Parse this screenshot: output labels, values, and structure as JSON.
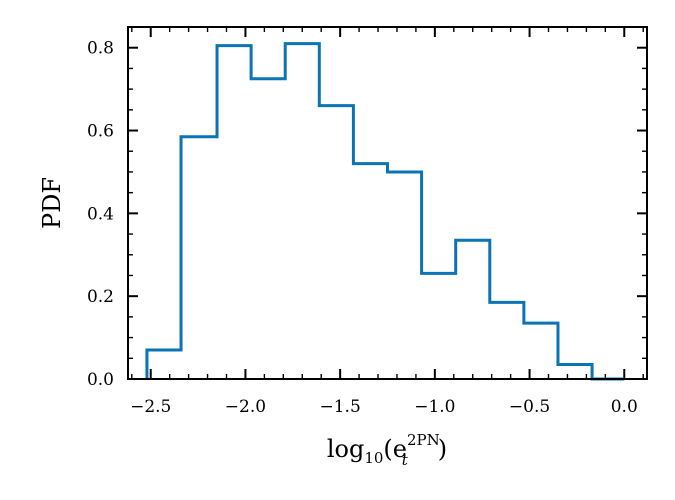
{
  "chart_data": {
    "type": "histogram",
    "bin_edges": [
      -2.52,
      -2.34,
      -2.15,
      -1.97,
      -1.79,
      -1.61,
      -1.43,
      -1.25,
      -1.07,
      -0.89,
      -0.71,
      -0.53,
      -0.35,
      -0.17,
      0.0
    ],
    "values": [
      0.07,
      0.585,
      0.805,
      0.725,
      0.81,
      0.66,
      0.52,
      0.5,
      0.255,
      0.335,
      0.185,
      0.135,
      0.035,
      0.0
    ],
    "xlim": [
      -2.62,
      0.12
    ],
    "ylim": [
      0,
      0.85
    ],
    "x_ticks": [
      -2.5,
      -2.0,
      -1.5,
      -1.0,
      -0.5,
      0.0
    ],
    "x_tick_labels": [
      "−2.5",
      "−2.0",
      "−1.5",
      "−1.0",
      "−0.5",
      "0.0"
    ],
    "y_ticks": [
      0.0,
      0.2,
      0.4,
      0.6,
      0.8
    ],
    "y_tick_labels": [
      "0.0",
      "0.2",
      "0.4",
      "0.6",
      "0.8"
    ],
    "ylabel": "PDF",
    "xlabel": {
      "base": "log",
      "base_sub": "10",
      "open": "(e",
      "sup": "2PN",
      "sub": "t",
      "close": ")"
    },
    "line_color": "#0a74b5",
    "grid": false,
    "legend": "none"
  }
}
